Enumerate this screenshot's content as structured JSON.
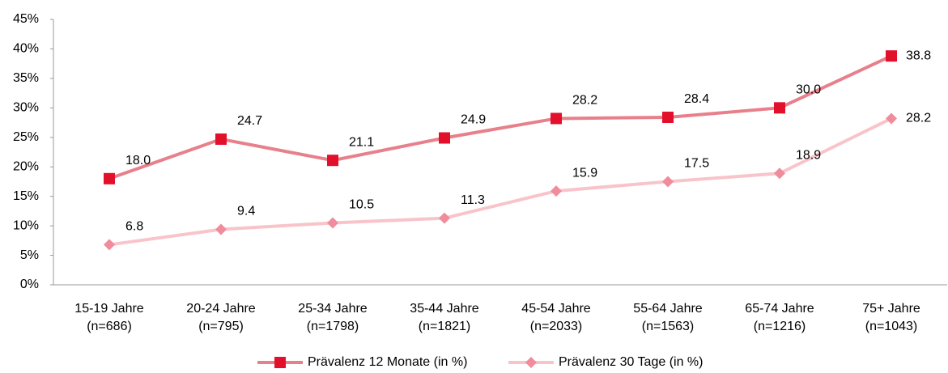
{
  "chart_data": {
    "type": "line",
    "categories": [
      [
        "15-19 Jahre",
        "(n=686)"
      ],
      [
        "20-24 Jahre",
        "(n=795)"
      ],
      [
        "25-34 Jahre",
        "(n=1798)"
      ],
      [
        "35-44 Jahre",
        "(n=1821)"
      ],
      [
        "45-54 Jahre",
        "(n=2033)"
      ],
      [
        "55-64 Jahre",
        "(n=1563)"
      ],
      [
        "65-74 Jahre",
        "(n=1216)"
      ],
      [
        "75+ Jahre",
        "(n=1043)"
      ]
    ],
    "series": [
      {
        "name": "Prävalenz 12 Monate (in %)",
        "color": "#e8808c",
        "marker_color": "#e3102c",
        "marker": "square",
        "values": [
          18.0,
          24.7,
          21.1,
          24.9,
          28.2,
          28.4,
          30.0,
          38.8
        ],
        "value_labels": [
          "18.0",
          "24.7",
          "21.1",
          "24.9",
          "28.2",
          "28.4",
          "30.0",
          "38.8"
        ]
      },
      {
        "name": "Prävalenz 30 Tage (in %)",
        "color": "#f8c4ca",
        "marker_color": "#f08c9c",
        "marker": "diamond",
        "values": [
          6.8,
          9.4,
          10.5,
          11.3,
          15.9,
          17.5,
          18.9,
          28.2
        ],
        "value_labels": [
          "6.8",
          "9.4",
          "10.5",
          "11.3",
          "15.9",
          "17.5",
          "18.9",
          "28.2"
        ]
      }
    ],
    "ylim": [
      0,
      45
    ],
    "yticks": [
      {
        "value": 0,
        "label": "0%"
      },
      {
        "value": 5,
        "label": "5%"
      },
      {
        "value": 10,
        "label": "10%"
      },
      {
        "value": 15,
        "label": "15%"
      },
      {
        "value": 20,
        "label": "20%"
      },
      {
        "value": 25,
        "label": "25%"
      },
      {
        "value": 30,
        "label": "30%"
      },
      {
        "value": 35,
        "label": "35%"
      },
      {
        "value": 40,
        "label": "40%"
      },
      {
        "value": 45,
        "label": "45%"
      }
    ],
    "legend": "bottom"
  }
}
